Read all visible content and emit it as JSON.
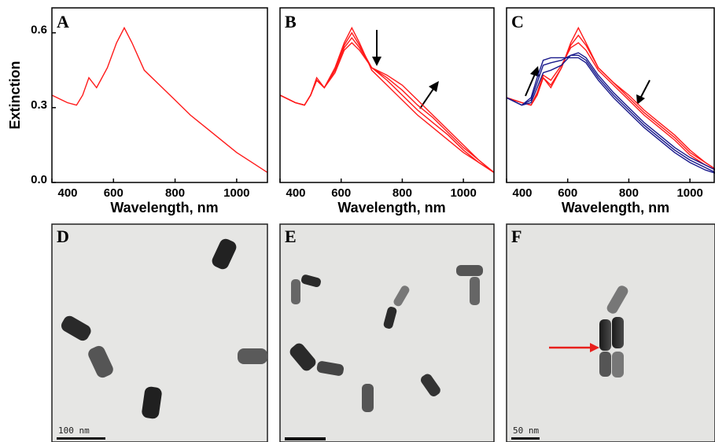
{
  "chart_data": [
    {
      "type": "line",
      "panel_label": "A",
      "x_label": "Wavelength, nm",
      "y_label": "Extinction",
      "x": [
        400,
        450,
        480,
        500,
        520,
        545,
        580,
        610,
        635,
        660,
        700,
        750,
        800,
        850,
        900,
        950,
        1000,
        1050,
        1100
      ],
      "xlim": [
        400,
        1100
      ],
      "xticks": [
        400,
        600,
        800,
        1000
      ],
      "ylim": [
        0,
        0.7
      ],
      "yticks": [
        {
          "value": 0,
          "label": "0.0"
        },
        0.3,
        0.6
      ],
      "series": [
        {
          "color": "#ff1a1a",
          "values": [
            0.35,
            0.32,
            0.31,
            0.35,
            0.42,
            0.38,
            0.46,
            0.56,
            0.62,
            0.56,
            0.45,
            0.39,
            0.33,
            0.27,
            0.22,
            0.17,
            0.12,
            0.08,
            0.04
          ]
        }
      ]
    },
    {
      "type": "line",
      "panel_label": "B",
      "x_label": "Wavelength, nm",
      "x": [
        400,
        450,
        480,
        500,
        520,
        545,
        580,
        610,
        635,
        660,
        700,
        750,
        800,
        850,
        900,
        950,
        1000,
        1050,
        1100
      ],
      "xlim": [
        400,
        1100
      ],
      "xticks": [
        400,
        600,
        800,
        1000
      ],
      "ylim": [
        0,
        0.7
      ],
      "series": [
        {
          "color": "#ff1a1a",
          "values": [
            0.35,
            0.32,
            0.31,
            0.35,
            0.42,
            0.38,
            0.46,
            0.56,
            0.62,
            0.56,
            0.45,
            0.39,
            0.33,
            0.27,
            0.22,
            0.17,
            0.12,
            0.08,
            0.04
          ]
        },
        {
          "color": "#ff1a1a",
          "values": [
            0.35,
            0.32,
            0.31,
            0.35,
            0.41,
            0.38,
            0.45,
            0.55,
            0.6,
            0.55,
            0.46,
            0.41,
            0.35,
            0.29,
            0.24,
            0.19,
            0.13,
            0.08,
            0.04
          ]
        },
        {
          "color": "#ff1a1a",
          "values": [
            0.35,
            0.32,
            0.31,
            0.35,
            0.41,
            0.38,
            0.45,
            0.54,
            0.58,
            0.54,
            0.46,
            0.42,
            0.37,
            0.31,
            0.26,
            0.2,
            0.14,
            0.09,
            0.04
          ]
        },
        {
          "color": "#ff1a1a",
          "values": [
            0.35,
            0.32,
            0.31,
            0.35,
            0.41,
            0.38,
            0.44,
            0.53,
            0.56,
            0.53,
            0.46,
            0.43,
            0.39,
            0.33,
            0.27,
            0.21,
            0.15,
            0.09,
            0.04
          ]
        }
      ]
    },
    {
      "type": "line",
      "panel_label": "C",
      "x_label": "Wavelength, nm",
      "x": [
        400,
        450,
        480,
        500,
        520,
        545,
        580,
        610,
        635,
        660,
        700,
        750,
        800,
        850,
        900,
        950,
        1000,
        1050,
        1100
      ],
      "xlim": [
        400,
        1100
      ],
      "xticks": [
        400,
        600,
        800,
        1000
      ],
      "ylim": [
        0,
        0.7
      ],
      "series": [
        {
          "color": "#ff1a1a",
          "values": [
            0.34,
            0.32,
            0.31,
            0.35,
            0.42,
            0.38,
            0.46,
            0.56,
            0.62,
            0.56,
            0.46,
            0.4,
            0.35,
            0.29,
            0.24,
            0.19,
            0.13,
            0.08,
            0.04
          ]
        },
        {
          "color": "#ff1a1a",
          "values": [
            0.34,
            0.32,
            0.31,
            0.35,
            0.42,
            0.39,
            0.46,
            0.55,
            0.59,
            0.55,
            0.46,
            0.4,
            0.34,
            0.28,
            0.23,
            0.18,
            0.12,
            0.08,
            0.04
          ]
        },
        {
          "color": "#ff1a1a",
          "values": [
            0.34,
            0.32,
            0.31,
            0.36,
            0.43,
            0.41,
            0.47,
            0.54,
            0.56,
            0.53,
            0.45,
            0.39,
            0.33,
            0.27,
            0.22,
            0.17,
            0.11,
            0.07,
            0.04
          ]
        },
        {
          "color": "#1a1a8c",
          "values": [
            0.34,
            0.31,
            0.32,
            0.38,
            0.44,
            0.45,
            0.47,
            0.51,
            0.52,
            0.5,
            0.43,
            0.36,
            0.3,
            0.24,
            0.19,
            0.14,
            0.1,
            0.07,
            0.04
          ]
        },
        {
          "color": "#1a1a8c",
          "values": [
            0.34,
            0.31,
            0.33,
            0.4,
            0.47,
            0.48,
            0.49,
            0.51,
            0.51,
            0.49,
            0.42,
            0.35,
            0.29,
            0.23,
            0.18,
            0.13,
            0.09,
            0.06,
            0.03
          ]
        },
        {
          "color": "#1a1a8c",
          "values": [
            0.34,
            0.31,
            0.34,
            0.42,
            0.49,
            0.5,
            0.5,
            0.5,
            0.5,
            0.48,
            0.41,
            0.34,
            0.28,
            0.22,
            0.17,
            0.12,
            0.08,
            0.05,
            0.03
          ]
        }
      ]
    }
  ],
  "images": [
    {
      "label": "D",
      "scale_bar": "100 nm"
    },
    {
      "label": "E"
    },
    {
      "label": "F",
      "scale_bar": "50 nm"
    }
  ]
}
